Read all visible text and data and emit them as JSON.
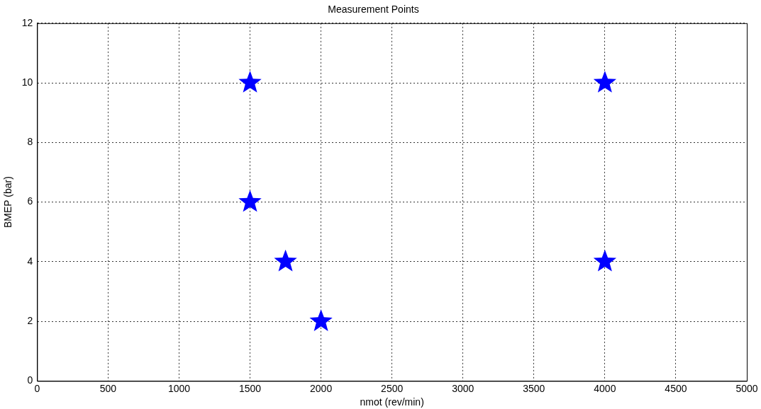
{
  "chart_data": {
    "type": "scatter",
    "title": "Measurement Points",
    "xlabel": "nmot (rev/min)",
    "ylabel": "BMEP (bar)",
    "x": [
      1500,
      4000,
      1500,
      1750,
      4000,
      2000
    ],
    "series": [
      {
        "color": "#0000ff",
        "values": [
          10,
          10,
          6,
          4,
          4,
          2
        ]
      }
    ],
    "xlim": [
      0,
      5000
    ],
    "xticks": [
      0,
      500,
      1000,
      1500,
      2000,
      2500,
      3000,
      3500,
      4000,
      4500,
      5000
    ],
    "ylim": [
      0,
      12
    ],
    "yticks": [
      0,
      2,
      4,
      6,
      8,
      10,
      12
    ],
    "grid": true,
    "legend": false,
    "marker": "star"
  }
}
